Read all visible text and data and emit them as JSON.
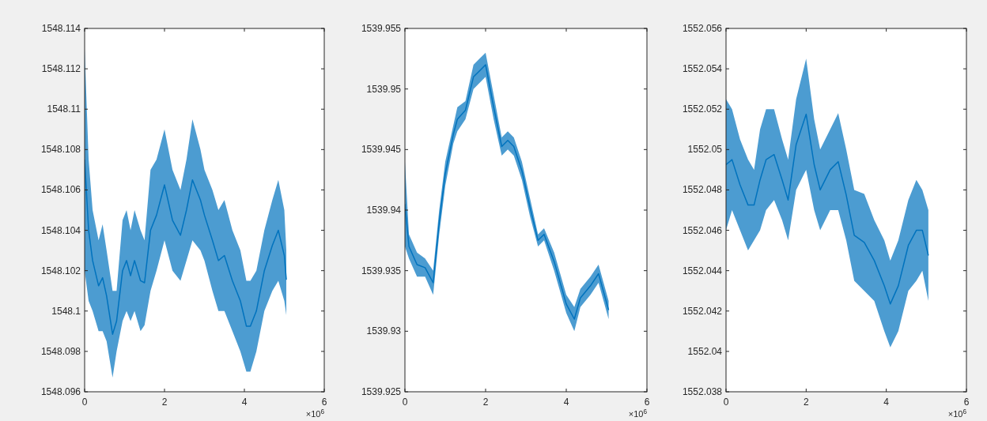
{
  "chart_data": [
    {
      "type": "line",
      "xlim": [
        0,
        6
      ],
      "xticks": [
        0,
        2,
        4,
        6
      ],
      "ylim": [
        1548.096,
        1548.114
      ],
      "yticks": [
        1548.096,
        1548.098,
        1548.1,
        1548.102,
        1548.104,
        1548.106,
        1548.108,
        1548.11,
        1548.112,
        1548.114
      ],
      "annotations": [
        "×10$^{6}$"
      ],
      "grid": false,
      "series": [
        {
          "color": "#0072bd",
          "x": [
            0,
            0.1,
            0.2,
            0.35,
            0.45,
            0.55,
            0.7,
            0.8,
            0.95,
            1.05,
            1.15,
            1.25,
            1.4,
            1.5,
            1.65,
            1.8,
            2.0,
            2.2,
            2.4,
            2.55,
            2.7,
            2.9,
            3.0,
            3.2,
            3.35,
            3.5,
            3.7,
            3.9,
            4.05,
            4.15,
            4.3,
            4.5,
            4.7,
            4.85,
            5.0,
            5.05
          ],
          "values": [
            1548.1075,
            1548.104,
            1548.1025,
            1548.10125,
            1548.10165,
            1548.10075,
            1548.09885,
            1548.0995,
            1548.102,
            1548.1025,
            1548.10175,
            1548.1025,
            1548.1015,
            1548.1014,
            1548.104,
            1548.10475,
            1548.10625,
            1548.1045,
            1548.10375,
            1548.105,
            1548.1065,
            1548.1055,
            1548.10475,
            1548.1035,
            1548.1025,
            1548.10275,
            1548.1015,
            1548.1005,
            1548.09925,
            1548.09925,
            1548.1,
            1548.102,
            1548.10325,
            1548.104,
            1548.10275,
            1548.10155
          ],
          "lower": [
            1548.102,
            1548.1005,
            1548.1,
            1548.099,
            1548.099,
            1548.0985,
            1548.0967,
            1548.098,
            1548.0995,
            1548.1,
            1548.0995,
            1548.1,
            1548.099,
            1548.0993,
            1548.101,
            1548.102,
            1548.1035,
            1548.102,
            1548.1015,
            1548.1025,
            1548.1035,
            1548.103,
            1548.1025,
            1548.101,
            1548.1,
            1548.1,
            1548.099,
            1548.098,
            1548.097,
            1548.097,
            1548.098,
            1548.1,
            1548.101,
            1548.1015,
            1548.1005,
            1548.0998
          ],
          "upper": [
            1548.113,
            1548.1075,
            1548.105,
            1548.1035,
            1548.1043,
            1548.103,
            1548.101,
            1548.101,
            1548.1045,
            1548.105,
            1548.104,
            1548.105,
            1548.104,
            1548.1035,
            1548.107,
            1548.1075,
            1548.109,
            1548.107,
            1548.106,
            1548.1075,
            1548.1095,
            1548.108,
            1548.107,
            1548.106,
            1548.105,
            1548.1055,
            1548.104,
            1548.103,
            1548.1015,
            1548.1015,
            1548.102,
            1548.104,
            1548.1055,
            1548.1065,
            1548.105,
            1548.103
          ]
        }
      ]
    },
    {
      "type": "line",
      "xlim": [
        0,
        6
      ],
      "xticks": [
        0,
        2,
        4,
        6
      ],
      "ylim": [
        1539.925,
        1539.955
      ],
      "yticks": [
        1539.925,
        1539.93,
        1539.935,
        1539.94,
        1539.945,
        1539.95,
        1539.955
      ],
      "annotations": [
        "×10$^{6}$"
      ],
      "grid": false,
      "series": [
        {
          "color": "#0072bd",
          "x": [
            0,
            0.1,
            0.3,
            0.5,
            0.7,
            0.85,
            1.0,
            1.2,
            1.3,
            1.5,
            1.7,
            1.85,
            2.0,
            2.2,
            2.4,
            2.55,
            2.7,
            2.9,
            3.1,
            3.3,
            3.45,
            3.7,
            4.0,
            4.2,
            4.35,
            4.6,
            4.8,
            5.05
          ],
          "values": [
            1539.9405,
            1539.937,
            1539.9355,
            1539.93525,
            1539.934,
            1539.939,
            1539.943,
            1539.94625,
            1539.9475,
            1539.94825,
            1539.951,
            1539.9515,
            1539.952,
            1539.9485,
            1539.94525,
            1539.94575,
            1539.94525,
            1539.94325,
            1539.94025,
            1539.9375,
            1539.938,
            1539.93575,
            1539.93225,
            1539.931,
            1539.93275,
            1539.93375,
            1539.93475,
            1539.93175
          ],
          "lower": [
            1539.937,
            1539.936,
            1539.9345,
            1539.9345,
            1539.933,
            1539.938,
            1539.942,
            1539.9455,
            1539.9465,
            1539.9475,
            1539.95,
            1539.9505,
            1539.951,
            1539.9475,
            1539.9445,
            1539.945,
            1539.9445,
            1539.9425,
            1539.9395,
            1539.937,
            1539.9375,
            1539.935,
            1539.9315,
            1539.93,
            1539.932,
            1539.933,
            1539.934,
            1539.931
          ],
          "upper": [
            1539.944,
            1539.938,
            1539.9365,
            1539.936,
            1539.935,
            1539.94,
            1539.944,
            1539.947,
            1539.9485,
            1539.949,
            1539.952,
            1539.9525,
            1539.953,
            1539.9495,
            1539.946,
            1539.9465,
            1539.946,
            1539.944,
            1539.941,
            1539.938,
            1539.9385,
            1539.9365,
            1539.933,
            1539.932,
            1539.9335,
            1539.9345,
            1539.9355,
            1539.9325
          ]
        }
      ]
    },
    {
      "type": "line",
      "xlim": [
        0,
        6
      ],
      "xticks": [
        0,
        2,
        4,
        6
      ],
      "ylim": [
        1552.038,
        1552.056
      ],
      "yticks": [
        1552.038,
        1552.04,
        1552.042,
        1552.044,
        1552.046,
        1552.048,
        1552.05,
        1552.052,
        1552.054,
        1552.056
      ],
      "annotations": [
        "×10$^{6}$"
      ],
      "grid": false,
      "series": [
        {
          "color": "#0072bd",
          "x": [
            0,
            0.15,
            0.35,
            0.55,
            0.7,
            0.85,
            1.0,
            1.2,
            1.4,
            1.55,
            1.75,
            2.0,
            2.2,
            2.35,
            2.6,
            2.8,
            3.0,
            3.2,
            3.45,
            3.7,
            3.95,
            4.1,
            4.3,
            4.55,
            4.75,
            4.9,
            5.05
          ],
          "values": [
            1552.04925,
            1552.0495,
            1552.04825,
            1552.04725,
            1552.04725,
            1552.0485,
            1552.0495,
            1552.04975,
            1552.0485,
            1552.0475,
            1552.05025,
            1552.05175,
            1552.04925,
            1552.048,
            1552.049,
            1552.0494,
            1552.04775,
            1552.04575,
            1552.0454,
            1552.0445,
            1552.04325,
            1552.04235,
            1552.04325,
            1552.04525,
            1552.046,
            1552.046,
            1552.04475
          ],
          "lower": [
            1552.046,
            1552.047,
            1552.046,
            1552.045,
            1552.0455,
            1552.046,
            1552.047,
            1552.0475,
            1552.0465,
            1552.0455,
            1552.048,
            1552.049,
            1552.047,
            1552.046,
            1552.047,
            1552.047,
            1552.0455,
            1552.0435,
            1552.043,
            1552.0425,
            1552.041,
            1552.0402,
            1552.041,
            1552.043,
            1552.0435,
            1552.044,
            1552.0425
          ],
          "upper": [
            1552.0525,
            1552.052,
            1552.0505,
            1552.0495,
            1552.049,
            1552.051,
            1552.052,
            1552.052,
            1552.0505,
            1552.0495,
            1552.0525,
            1552.0545,
            1552.0515,
            1552.05,
            1552.051,
            1552.0518,
            1552.05,
            1552.048,
            1552.0478,
            1552.0465,
            1552.0455,
            1552.0445,
            1552.0455,
            1552.0475,
            1552.0485,
            1552.048,
            1552.047
          ]
        }
      ]
    }
  ]
}
